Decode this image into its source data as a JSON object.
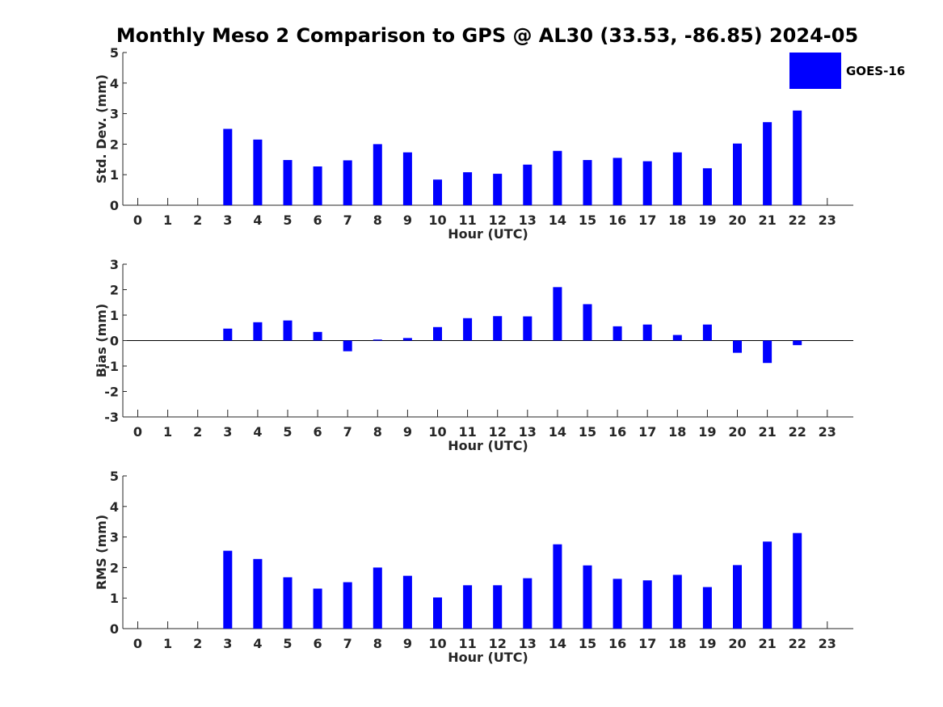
{
  "figure": {
    "title": "Monthly Meso 2 Comparison to GPS @ AL30 (33.53, -86.85) 2024-05",
    "legend": {
      "label": "GOES-16",
      "color": "#0000ff",
      "placement": "top-right"
    }
  },
  "chart_data": [
    {
      "type": "bar",
      "xlabel": "Hour (UTC)",
      "ylabel": "Std. Dev. (mm)",
      "ylim": [
        0,
        5
      ],
      "yticks": [
        "0",
        "1",
        "2",
        "3",
        "4",
        "5"
      ],
      "categories": [
        "0",
        "1",
        "2",
        "3",
        "4",
        "5",
        "6",
        "7",
        "8",
        "9",
        "10",
        "11",
        "12",
        "13",
        "14",
        "15",
        "16",
        "17",
        "18",
        "19",
        "20",
        "21",
        "22",
        "23"
      ],
      "series": [
        {
          "name": "GOES-16",
          "values": [
            null,
            null,
            null,
            2.5,
            2.15,
            1.48,
            1.27,
            1.47,
            2.0,
            1.73,
            0.84,
            1.08,
            1.03,
            1.33,
            1.78,
            1.48,
            1.55,
            1.44,
            1.73,
            1.21,
            2.02,
            2.72,
            3.1,
            null
          ]
        }
      ]
    },
    {
      "type": "bar",
      "xlabel": "Hour (UTC)",
      "ylabel": "Bias (mm)",
      "ylim": [
        -3,
        3
      ],
      "yticks": [
        "-3",
        "-2",
        "-1",
        "0",
        "1",
        "2",
        "3"
      ],
      "categories": [
        "0",
        "1",
        "2",
        "3",
        "4",
        "5",
        "6",
        "7",
        "8",
        "9",
        "10",
        "11",
        "12",
        "13",
        "14",
        "15",
        "16",
        "17",
        "18",
        "19",
        "20",
        "21",
        "22",
        "23"
      ],
      "series": [
        {
          "name": "GOES-16",
          "values": [
            null,
            null,
            null,
            0.47,
            0.72,
            0.79,
            0.34,
            -0.42,
            0.04,
            0.1,
            0.53,
            0.88,
            0.96,
            0.95,
            2.1,
            1.43,
            0.56,
            0.63,
            0.22,
            0.63,
            -0.48,
            -0.88,
            -0.18,
            null
          ]
        }
      ]
    },
    {
      "type": "bar",
      "xlabel": "Hour (UTC)",
      "ylabel": "RMS (mm)",
      "ylim": [
        0,
        5
      ],
      "yticks": [
        "0",
        "1",
        "2",
        "3",
        "4",
        "5"
      ],
      "categories": [
        "0",
        "1",
        "2",
        "3",
        "4",
        "5",
        "6",
        "7",
        "8",
        "9",
        "10",
        "11",
        "12",
        "13",
        "14",
        "15",
        "16",
        "17",
        "18",
        "19",
        "20",
        "21",
        "22",
        "23"
      ],
      "series": [
        {
          "name": "GOES-16",
          "values": [
            null,
            null,
            null,
            2.55,
            2.28,
            1.68,
            1.31,
            1.52,
            2.0,
            1.73,
            1.02,
            1.42,
            1.42,
            1.65,
            2.76,
            2.07,
            1.63,
            1.58,
            1.76,
            1.36,
            2.08,
            2.85,
            3.13,
            null
          ]
        }
      ]
    }
  ]
}
